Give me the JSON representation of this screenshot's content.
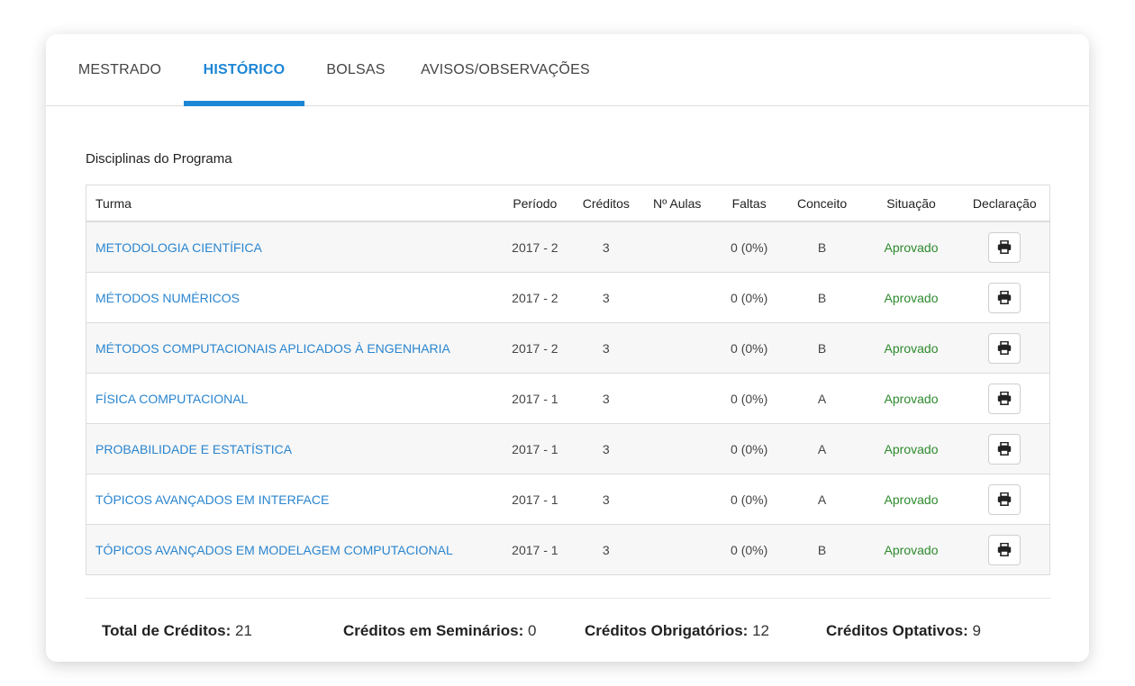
{
  "tabs": [
    {
      "label": "MESTRADO"
    },
    {
      "label": "HISTÓRICO"
    },
    {
      "label": "BOLSAS"
    },
    {
      "label": "AVISOS/OBSERVAÇÕES"
    }
  ],
  "section_title": "Disciplinas do Programa",
  "table": {
    "headers": [
      "Turma",
      "Período",
      "Créditos",
      "Nº Aulas",
      "Faltas",
      "Conceito",
      "Situação",
      "Declaração"
    ],
    "rows": [
      {
        "turma": "METODOLOGIA CIENTÍFICA",
        "periodo": "2017 - 2",
        "creditos": "3",
        "aulas": "",
        "faltas": "0 (0%)",
        "conceito": "B",
        "situacao": "Aprovado"
      },
      {
        "turma": "MÉTODOS NUMÉRICOS",
        "periodo": "2017 - 2",
        "creditos": "3",
        "aulas": "",
        "faltas": "0 (0%)",
        "conceito": "B",
        "situacao": "Aprovado"
      },
      {
        "turma": "MÉTODOS COMPUTACIONAIS APLICADOS À ENGENHARIA",
        "periodo": "2017 - 2",
        "creditos": "3",
        "aulas": "",
        "faltas": "0 (0%)",
        "conceito": "B",
        "situacao": "Aprovado"
      },
      {
        "turma": "FÍSICA COMPUTACIONAL",
        "periodo": "2017 - 1",
        "creditos": "3",
        "aulas": "",
        "faltas": "0 (0%)",
        "conceito": "A",
        "situacao": "Aprovado"
      },
      {
        "turma": "PROBABILIDADE E ESTATÍSTICA",
        "periodo": "2017 - 1",
        "creditos": "3",
        "aulas": "",
        "faltas": "0 (0%)",
        "conceito": "A",
        "situacao": "Aprovado"
      },
      {
        "turma": "TÓPICOS AVANÇADOS EM INTERFACE",
        "periodo": "2017 - 1",
        "creditos": "3",
        "aulas": "",
        "faltas": "0 (0%)",
        "conceito": "A",
        "situacao": "Aprovado"
      },
      {
        "turma": "TÓPICOS AVANÇADOS EM MODELAGEM COMPUTACIONAL",
        "periodo": "2017 - 1",
        "creditos": "3",
        "aulas": "",
        "faltas": "0 (0%)",
        "conceito": "B",
        "situacao": "Aprovado"
      }
    ],
    "print_icon": "printer-icon"
  },
  "totals": {
    "total_label": "Total de Créditos:",
    "total_value": "21",
    "seminarios_label": "Créditos em Seminários:",
    "seminarios_value": "0",
    "obrigatorios_label": "Créditos Obrigatórios:",
    "obrigatorios_value": "12",
    "optativos_label": "Créditos Optativos:",
    "optativos_value": "9"
  },
  "colors": {
    "accent": "#1c86d6",
    "approved": "#2d8a2d",
    "link": "#2a85cf"
  }
}
